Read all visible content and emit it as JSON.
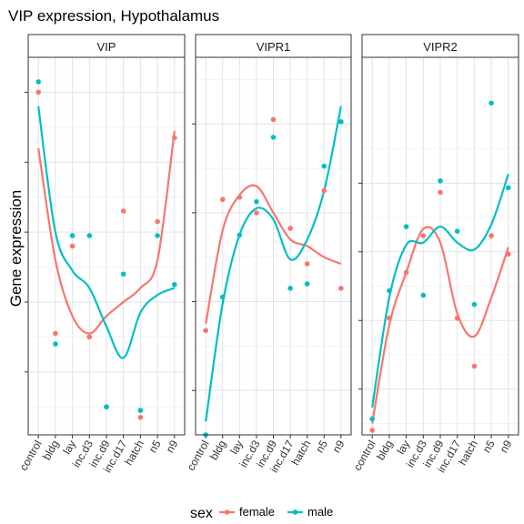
{
  "chart_data": {
    "type": "scatter",
    "title": "VIP expression, Hypothalamus",
    "ylabel": "Gene expression",
    "xlabel": "",
    "categories": [
      "control",
      "bldg",
      "lay",
      "inc.d3",
      "inc.d9",
      "inc.d17",
      "hatch",
      "n5",
      "n9"
    ],
    "legend": {
      "title": "sex",
      "position": "bottom",
      "entries": [
        "female",
        "male"
      ]
    },
    "colors": {
      "female": "#F8766D",
      "male": "#00BFC4"
    },
    "grid": true,
    "panels": [
      {
        "label": "VIP",
        "ylim": [
          -0.8,
          10.0
        ],
        "yticks": [
          1,
          3,
          5,
          7,
          9
        ],
        "series": [
          {
            "name": "female",
            "points": [
              [
                "control",
                9.0
              ],
              [
                "bldg",
                2.1
              ],
              [
                "lay",
                4.6
              ],
              [
                "inc.d3",
                2.0
              ],
              [
                "inc.d9",
                0.0
              ],
              [
                "inc.d17",
                5.6
              ],
              [
                "hatch",
                -0.3
              ],
              [
                "n5",
                5.3
              ],
              [
                "n9",
                7.7
              ]
            ],
            "smooth": [
              7.4,
              4.2,
              2.6,
              2.1,
              2.6,
              3.0,
              3.4,
              4.2,
              7.9
            ]
          },
          {
            "name": "male",
            "points": [
              [
                "control",
                9.3
              ],
              [
                "bldg",
                1.8
              ],
              [
                "lay",
                4.9
              ],
              [
                "inc.d3",
                4.9
              ],
              [
                "inc.d9",
                0.0
              ],
              [
                "inc.d17",
                3.8
              ],
              [
                "hatch",
                -0.1
              ],
              [
                "n5",
                4.9
              ],
              [
                "n9",
                3.5
              ]
            ],
            "smooth": [
              8.6,
              5.0,
              3.9,
              3.4,
              2.3,
              1.4,
              2.7,
              3.2,
              3.4
            ]
          }
        ]
      },
      {
        "label": "VIPR1",
        "ylim": [
          11.6,
          13.3
        ],
        "yticks": [
          11.8,
          12.2,
          12.6,
          13.0
        ],
        "series": [
          {
            "name": "female",
            "points": [
              [
                "control",
                12.07
              ],
              [
                "bldg",
                12.66
              ],
              [
                "lay",
                12.67
              ],
              [
                "inc.d3",
                12.6
              ],
              [
                "inc.d9",
                13.02
              ],
              [
                "inc.d17",
                12.53
              ],
              [
                "hatch",
                12.37
              ],
              [
                "n5",
                12.7
              ],
              [
                "n9",
                12.26
              ]
            ],
            "smooth": [
              12.1,
              12.52,
              12.68,
              12.72,
              12.6,
              12.48,
              12.45,
              12.4,
              12.37
            ]
          },
          {
            "name": "male",
            "points": [
              [
                "control",
                11.6
              ],
              [
                "bldg",
                12.22
              ],
              [
                "lay",
                12.5
              ],
              [
                "inc.d3",
                12.65
              ],
              [
                "inc.d9",
                12.94
              ],
              [
                "inc.d17",
                12.26
              ],
              [
                "hatch",
                12.28
              ],
              [
                "n5",
                12.81
              ],
              [
                "n9",
                13.01
              ]
            ],
            "smooth": [
              11.66,
              12.19,
              12.5,
              12.62,
              12.57,
              12.39,
              12.48,
              12.7,
              13.08
            ]
          }
        ]
      },
      {
        "label": "VIPR2",
        "ylim": [
          11.3,
          12.95
        ],
        "yticks": [
          11.5,
          11.8,
          12.1,
          12.4
        ],
        "series": [
          {
            "name": "female",
            "points": [
              [
                "control",
                11.32
              ],
              [
                "bldg",
                11.81
              ],
              [
                "lay",
                12.01
              ],
              [
                "inc.d3",
                12.17
              ],
              [
                "inc.d9",
                12.36
              ],
              [
                "inc.d17",
                11.81
              ],
              [
                "hatch",
                11.6
              ],
              [
                "n5",
                12.17
              ],
              [
                "n9",
                12.09
              ]
            ],
            "smooth": [
              11.35,
              11.78,
              12.01,
              12.2,
              12.14,
              11.83,
              11.73,
              11.9,
              12.12
            ]
          },
          {
            "name": "male",
            "points": [
              [
                "control",
                11.37
              ],
              [
                "bldg",
                11.93
              ],
              [
                "lay",
                12.21
              ],
              [
                "inc.d3",
                11.91
              ],
              [
                "inc.d9",
                12.41
              ],
              [
                "inc.d17",
                12.19
              ],
              [
                "hatch",
                11.87
              ],
              [
                "n5",
                12.75
              ],
              [
                "n9",
                12.38
              ]
            ],
            "smooth": [
              11.42,
              11.9,
              12.13,
              12.14,
              12.21,
              12.14,
              12.11,
              12.22,
              12.44
            ]
          }
        ]
      }
    ]
  }
}
